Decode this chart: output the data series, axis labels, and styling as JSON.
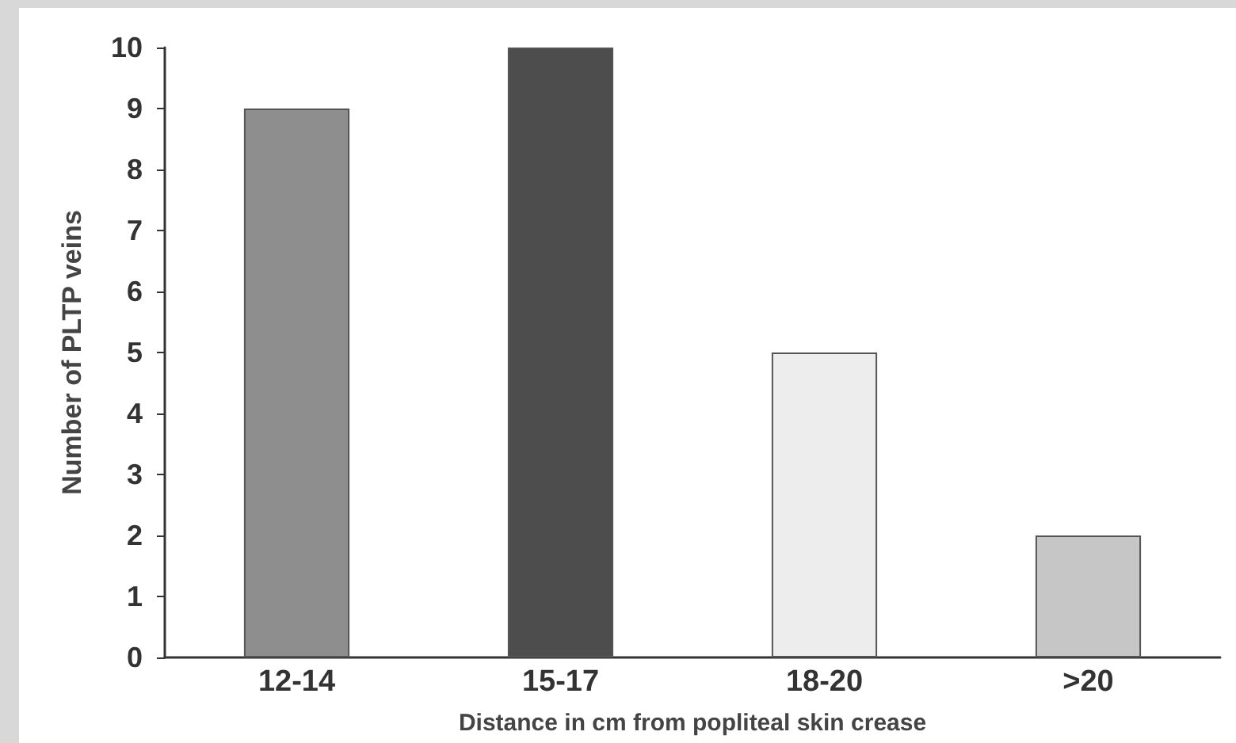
{
  "chart_data": {
    "type": "bar",
    "xlabel": "Distance in cm from popliteal skin crease",
    "ylabel": "Number of PLTP veins",
    "categories": [
      "12-14",
      "15-17",
      "18-20",
      ">20"
    ],
    "values": [
      9,
      10,
      5,
      2
    ],
    "colors": [
      "#8e8e8e",
      "#4d4d4d",
      "#ededed",
      "#c6c6c6"
    ],
    "ylim": [
      0,
      10
    ],
    "yticks": [
      0,
      1,
      2,
      3,
      4,
      5,
      6,
      7,
      8,
      9,
      10
    ],
    "grid": false
  }
}
